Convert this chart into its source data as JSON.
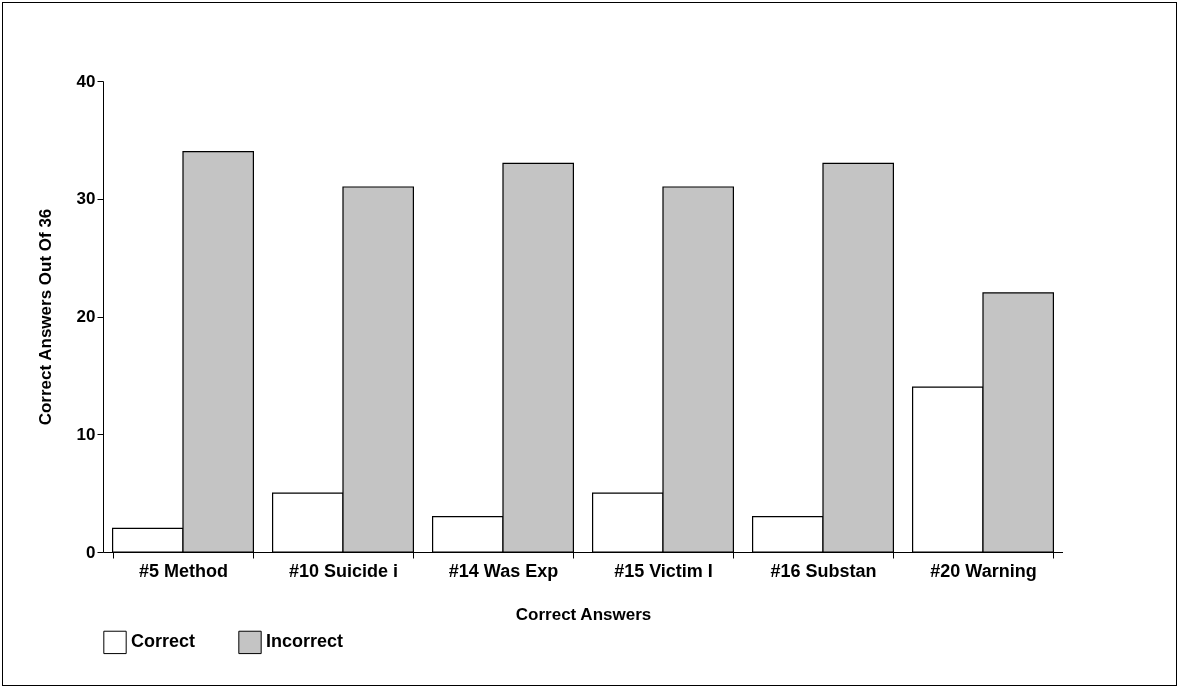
{
  "chart_data": {
    "type": "bar",
    "xlabel": "Correct Answers",
    "ylabel": "Correct Answers Out Of 36",
    "categories": [
      "#5 Method",
      "#10 Suicide i",
      "#14 Was Exp",
      "#15 Victim I",
      "#16 Substan",
      "#20 Warning"
    ],
    "series": [
      {
        "name": "Correct",
        "color": "#ffffff",
        "values": [
          2,
          5,
          3,
          5,
          3,
          14
        ]
      },
      {
        "name": "Incorrect",
        "color": "#c4c4c4",
        "values": [
          34,
          31,
          33,
          31,
          33,
          22
        ]
      }
    ],
    "ylim": [
      0,
      40
    ],
    "yticks": [
      0,
      10,
      20,
      30,
      40
    ],
    "grid": false,
    "legend": "bottom"
  }
}
